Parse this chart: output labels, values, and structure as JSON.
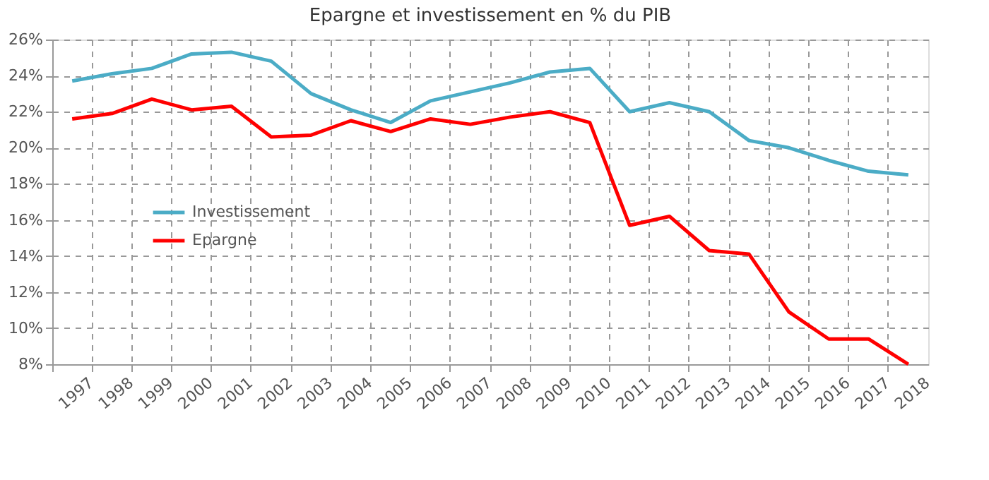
{
  "chart_data": {
    "type": "line",
    "title": "Epargne et investissement en % du PIB",
    "categories": [
      "1997",
      "1998",
      "1999",
      "2000",
      "2001",
      "2002",
      "2003",
      "2004",
      "2005",
      "2006",
      "2007",
      "2008",
      "2009",
      "2010",
      "2011",
      "2012",
      "2013",
      "2014",
      "2015",
      "2016",
      "2017",
      "2018"
    ],
    "series": [
      {
        "name": "Investissement",
        "color": "#4bacc6",
        "values": [
          23.7,
          24.1,
          24.4,
          25.2,
          25.3,
          24.8,
          23.0,
          22.1,
          21.4,
          22.6,
          23.1,
          23.6,
          24.2,
          24.4,
          22.0,
          22.5,
          22.0,
          20.4,
          20.0,
          19.3,
          18.7,
          18.5
        ]
      },
      {
        "name": "Epargne",
        "color": "#ff0000",
        "values": [
          21.6,
          21.9,
          22.7,
          22.1,
          22.3,
          20.6,
          20.7,
          21.5,
          20.9,
          21.6,
          21.3,
          21.7,
          22.0,
          21.4,
          15.7,
          16.2,
          14.3,
          14.1,
          10.9,
          9.4,
          9.4,
          8.0
        ]
      }
    ],
    "ylim": [
      8,
      26
    ],
    "yticks": [
      {
        "value": 8,
        "label": "8%"
      },
      {
        "value": 10,
        "label": "10%"
      },
      {
        "value": 12,
        "label": "12%"
      },
      {
        "value": 14,
        "label": "14%"
      },
      {
        "value": 16,
        "label": "16%"
      },
      {
        "value": 18,
        "label": "18%"
      },
      {
        "value": 20,
        "label": "20%"
      },
      {
        "value": 22,
        "label": "22%"
      },
      {
        "value": 24,
        "label": "24%"
      },
      {
        "value": 26,
        "label": "26%"
      }
    ],
    "grid": true,
    "legend": "left",
    "marker": "none",
    "line_style": "solid"
  }
}
